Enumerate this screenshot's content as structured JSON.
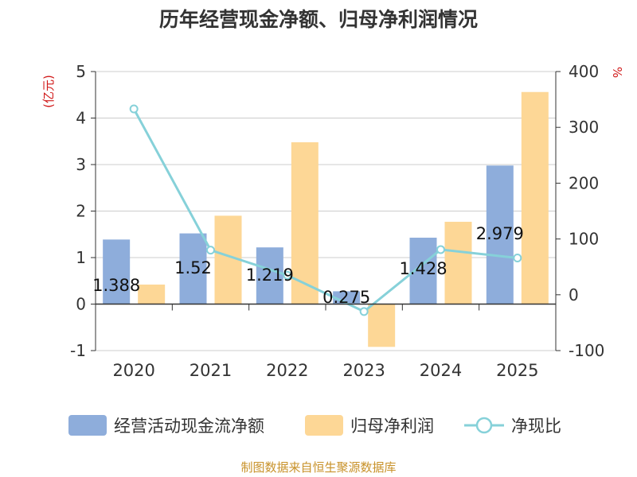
{
  "chart_data": {
    "type": "bar",
    "title": "历年经营现金净额、归母净利润情况",
    "categories": [
      "2020",
      "2021",
      "2022",
      "2023",
      "2024",
      "2025"
    ],
    "left_axis": {
      "unit_label": "(亿元)",
      "ylim": [
        -1,
        5
      ],
      "ticks": [
        -1,
        0,
        1,
        2,
        3,
        4,
        5
      ]
    },
    "right_axis": {
      "unit_label": "%",
      "ylim": [
        -100,
        400
      ],
      "ticks": [
        -100,
        0,
        100,
        200,
        300,
        400
      ]
    },
    "series": [
      {
        "name": "经营活动现金流净额",
        "type": "bar",
        "axis": "left",
        "color": "#8eaddb",
        "values": [
          1.388,
          1.52,
          1.219,
          0.275,
          1.428,
          2.979
        ],
        "data_labels": [
          "1.388",
          "1.52",
          "1.219",
          "0.275",
          "1.428",
          "2.979"
        ]
      },
      {
        "name": "归母净利润",
        "type": "bar",
        "axis": "left",
        "color": "#fdd796",
        "values": [
          0.42,
          1.9,
          3.48,
          -0.92,
          1.77,
          4.56
        ]
      },
      {
        "name": "净现比",
        "type": "line",
        "axis": "right",
        "color": "#86d1d9",
        "values": [
          333,
          80,
          35,
          -30,
          81,
          66
        ]
      }
    ],
    "legend_position": "bottom",
    "grid": true,
    "source": "制图数据来自恒生聚源数据库"
  }
}
